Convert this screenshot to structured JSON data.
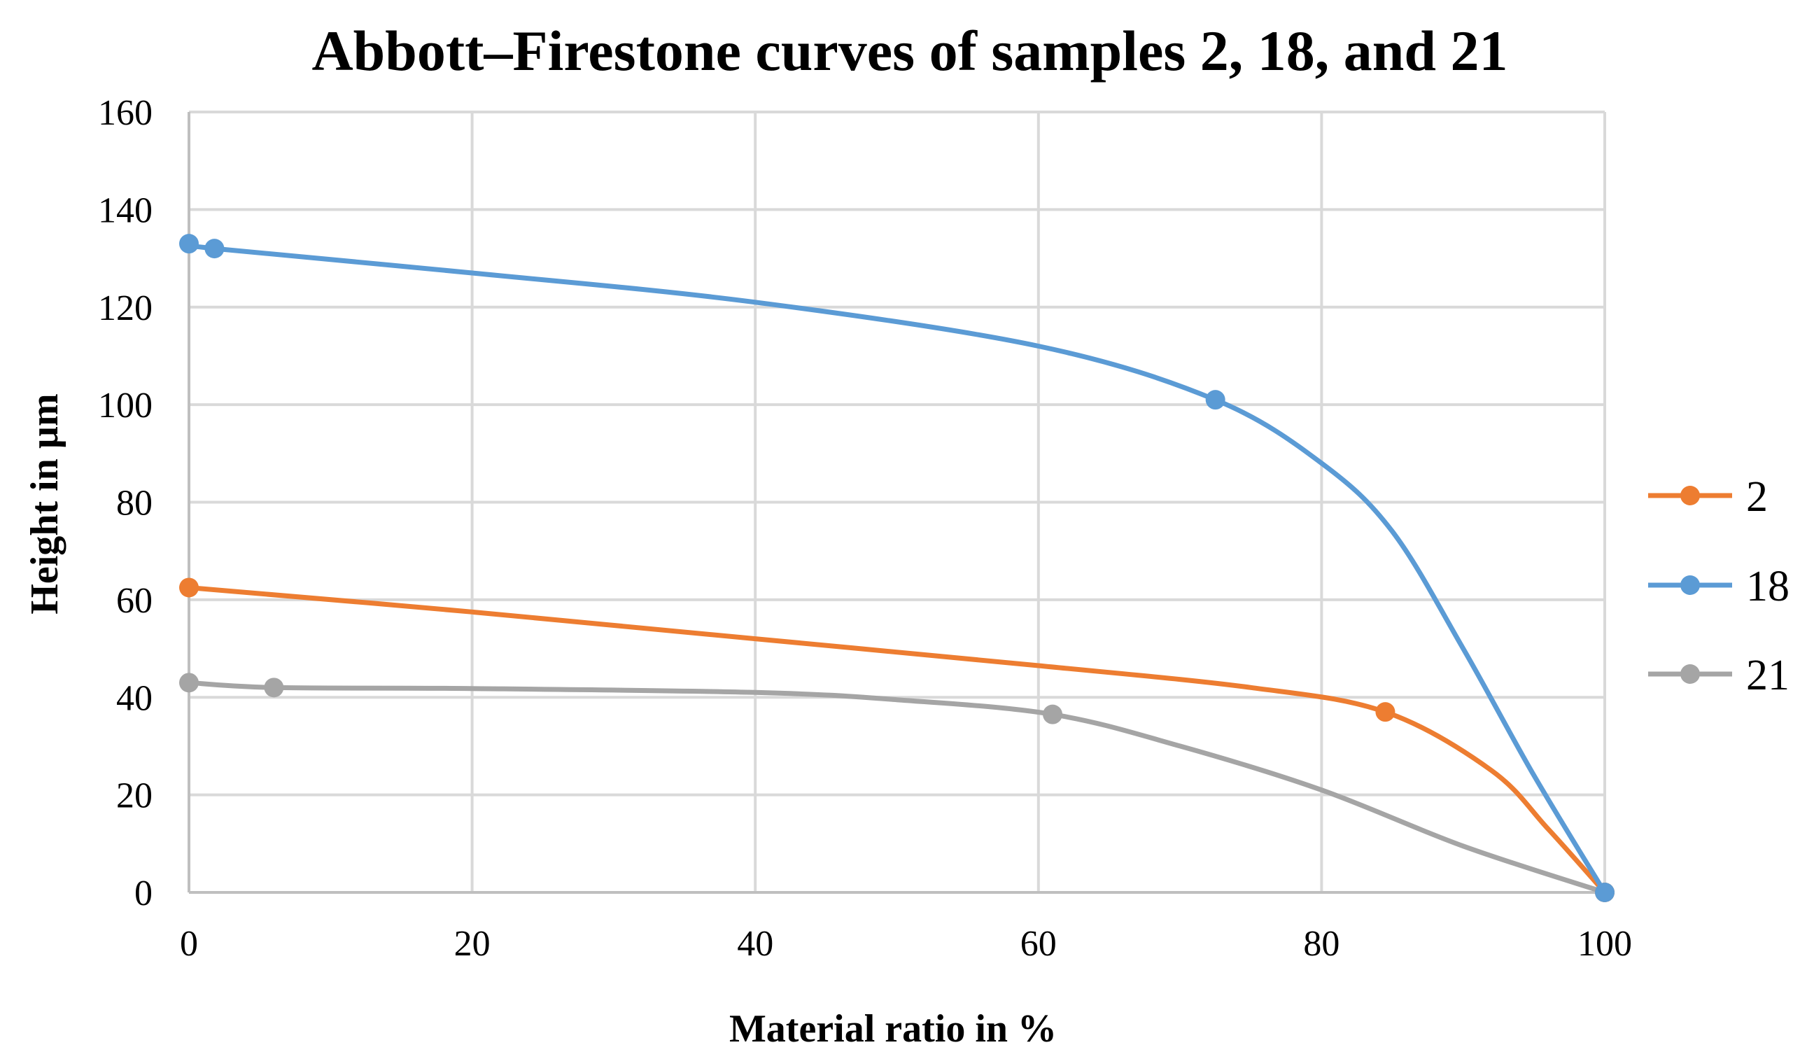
{
  "chart_data": {
    "type": "line",
    "title": "Abbott–Firestone curves of samples 2, 18, and 21",
    "xlabel": "Material ratio in %",
    "ylabel": "Height in µm",
    "xlim": [
      0,
      100
    ],
    "ylim": [
      0,
      160
    ],
    "x_ticks": [
      0,
      20,
      40,
      60,
      80,
      100
    ],
    "y_ticks": [
      0,
      20,
      40,
      60,
      80,
      100,
      120,
      140,
      160
    ],
    "grid": true,
    "legend_position": "right",
    "series": [
      {
        "name": "2",
        "color": "#ed7d31",
        "points": [
          [
            0,
            62.5
          ],
          [
            84.5,
            37
          ],
          [
            100,
            0
          ]
        ],
        "curve": [
          [
            0,
            62.5
          ],
          [
            20,
            57.5
          ],
          [
            40,
            52
          ],
          [
            60,
            46.5
          ],
          [
            75,
            42
          ],
          [
            84.5,
            37
          ],
          [
            92,
            25
          ],
          [
            96,
            13
          ],
          [
            100,
            0
          ]
        ]
      },
      {
        "name": "18",
        "color": "#5b9bd5",
        "points": [
          [
            0,
            133
          ],
          [
            1.8,
            132
          ],
          [
            72.5,
            101
          ],
          [
            100,
            0
          ]
        ],
        "curve": [
          [
            0,
            133
          ],
          [
            1.8,
            132
          ],
          [
            20,
            127
          ],
          [
            40,
            121
          ],
          [
            60,
            112
          ],
          [
            72.5,
            101
          ],
          [
            80,
            88
          ],
          [
            85,
            74
          ],
          [
            90,
            50
          ],
          [
            95,
            24
          ],
          [
            100,
            0
          ]
        ]
      },
      {
        "name": "21",
        "color": "#a5a5a5",
        "points": [
          [
            0,
            43
          ],
          [
            6,
            42
          ],
          [
            61,
            36.5
          ],
          [
            100,
            0
          ]
        ],
        "curve": [
          [
            0,
            43
          ],
          [
            6,
            42
          ],
          [
            20,
            41.8
          ],
          [
            40,
            41
          ],
          [
            50,
            39.5
          ],
          [
            61,
            36.5
          ],
          [
            70,
            30
          ],
          [
            80,
            21
          ],
          [
            90,
            9.5
          ],
          [
            100,
            0
          ]
        ]
      }
    ]
  }
}
